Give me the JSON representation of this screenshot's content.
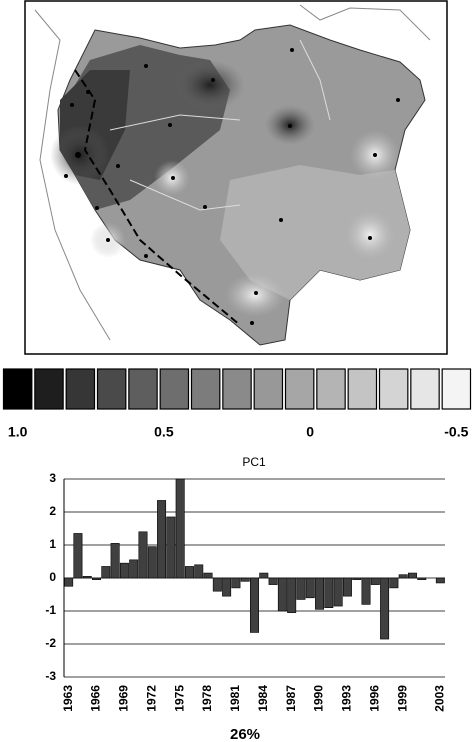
{
  "colorbar": {
    "colors": [
      "#000000",
      "#1e1e1e",
      "#363636",
      "#4a4a4a",
      "#5e5e5e",
      "#6e6e6e",
      "#7c7c7c",
      "#8a8a8a",
      "#989898",
      "#a6a6a6",
      "#b4b4b4",
      "#c4c4c4",
      "#d4d4d4",
      "#e6e6e6",
      "#f4f4f4"
    ],
    "lim": [
      1.0,
      -0.5
    ],
    "ticks": [
      {
        "value": 1.0,
        "label": "1.0"
      },
      0.5,
      0,
      -0.5
    ]
  },
  "chart_data": {
    "type": "bar",
    "title": "PC1",
    "annotation": "26%",
    "categories": [
      "1963",
      null,
      null,
      "1966",
      null,
      null,
      "1969",
      null,
      null,
      "1972",
      null,
      null,
      "1975",
      null,
      null,
      "1978",
      null,
      null,
      "1981",
      null,
      null,
      "1984",
      null,
      null,
      "1987",
      null,
      null,
      "1990",
      null,
      null,
      "1993",
      null,
      null,
      "1996",
      null,
      null,
      "1999",
      null,
      null,
      null,
      "2003"
    ],
    "values": [
      -0.25,
      1.35,
      0.05,
      -0.05,
      0.35,
      1.05,
      0.45,
      0.55,
      1.4,
      0.95,
      2.35,
      1.85,
      3.0,
      0.35,
      0.4,
      0.15,
      -0.4,
      -0.55,
      -0.3,
      -0.1,
      -1.65,
      0.15,
      -0.2,
      -1.0,
      -1.05,
      -0.65,
      -0.6,
      -0.95,
      -0.9,
      -0.85,
      -0.55,
      -0.05,
      -0.8,
      -0.2,
      -1.85,
      -0.3,
      0.1,
      0.15,
      -0.05,
      0,
      -0.15
    ],
    "color": "#404040",
    "ylim": [
      -3,
      3
    ],
    "yticks": [
      -3,
      -2,
      -1,
      0,
      1,
      2,
      3
    ],
    "grid": true
  }
}
